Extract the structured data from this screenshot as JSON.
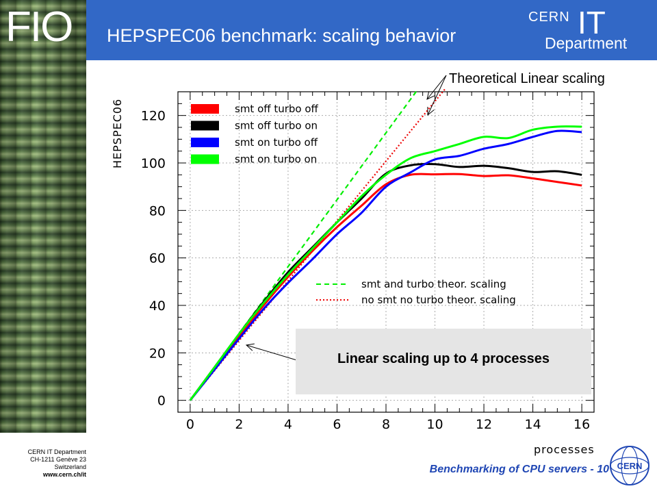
{
  "slide": {
    "brand": "FIO",
    "title": "HEPSPEC06 benchmark: scaling behavior",
    "cern_logo": {
      "cern": "CERN",
      "it": "IT",
      "department": "Department"
    },
    "footer_address": [
      "CERN IT Department",
      "CH-1211 Genève 23",
      "Switzerland"
    ],
    "footer_url": "www.cern.ch/it",
    "footer_title": "Benchmarking of CPU servers - 10",
    "cern_round_logo": "CERN"
  },
  "annotations": {
    "theoretical_label": "Theoretical Linear scaling",
    "callout": "Linear scaling up to 4 processes"
  },
  "chart_data": {
    "type": "line",
    "title": "",
    "xlabel": "processes",
    "ylabel": "HEPSPEC06",
    "xlim": [
      -0.5,
      16.5
    ],
    "ylim": [
      -5,
      130
    ],
    "xticks": [
      0,
      2,
      4,
      6,
      8,
      10,
      12,
      14,
      16
    ],
    "yticks": [
      0,
      20,
      40,
      60,
      80,
      100,
      120
    ],
    "grid": true,
    "legend_position": "top-left",
    "series": [
      {
        "name": "smt off turbo off",
        "color": "#ff0000",
        "style": "solid",
        "x": [
          0,
          1,
          2,
          3,
          4,
          5,
          6,
          7,
          8,
          9,
          10,
          11,
          12,
          13,
          14,
          15,
          16
        ],
        "y": [
          0,
          13.5,
          27,
          40,
          52,
          63,
          73,
          82,
          91,
          95,
          95.2,
          95.3,
          94.5,
          94.8,
          93.5,
          92,
          90.5
        ]
      },
      {
        "name": "smt off turbo on",
        "color": "#000000",
        "style": "solid",
        "x": [
          0,
          1,
          2,
          3,
          4,
          5,
          6,
          7,
          8,
          9,
          10,
          11,
          12,
          13,
          14,
          15,
          16
        ],
        "y": [
          0,
          14,
          28,
          41.5,
          54,
          64.5,
          75,
          85,
          95.5,
          99,
          99.5,
          98.3,
          98.8,
          97.8,
          96.2,
          96.5,
          95
        ]
      },
      {
        "name": "smt on  turbo off",
        "color": "#0000ff",
        "style": "solid",
        "x": [
          0,
          1,
          2,
          3,
          4,
          5,
          6,
          7,
          8,
          9,
          10,
          11,
          12,
          13,
          14,
          15,
          16
        ],
        "y": [
          0,
          13,
          26,
          38.5,
          49.5,
          59.5,
          70,
          79,
          90,
          96,
          101.5,
          103,
          106,
          108,
          111,
          113.5,
          113
        ]
      },
      {
        "name": "smt on  turbo on",
        "color": "#00ff00",
        "style": "solid",
        "x": [
          0,
          1,
          2,
          3,
          4,
          5,
          6,
          7,
          8,
          9,
          10,
          11,
          12,
          13,
          14,
          15,
          16
        ],
        "y": [
          0,
          14,
          28,
          41,
          53,
          64,
          75,
          86,
          95,
          102,
          105,
          108,
          111,
          110.5,
          114,
          115.3,
          115.3
        ]
      },
      {
        "name": "smt and turbo theor. scaling",
        "color": "#00ee00",
        "style": "dashed",
        "x": [
          0,
          9.3
        ],
        "y": [
          0,
          131
        ]
      },
      {
        "name": "no smt no turbo theor. scaling",
        "color": "#ee0000",
        "style": "dotted",
        "x": [
          0,
          10.4
        ],
        "y": [
          0,
          131
        ]
      }
    ]
  }
}
